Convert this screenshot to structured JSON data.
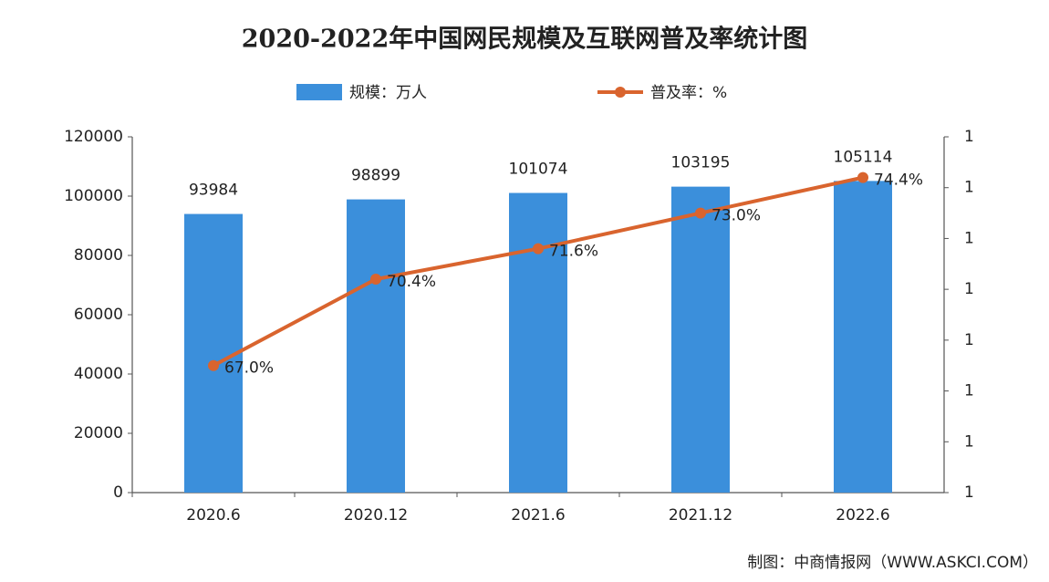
{
  "chart_data": {
    "type": "combo",
    "title": "2020-2022年中国网民规模及互联网普及率统计图",
    "categories": [
      "2020.6",
      "2020.12",
      "2021.6",
      "2021.12",
      "2022.6"
    ],
    "series": [
      {
        "name": "规模：万人",
        "type": "bar",
        "color": "#3b8fdb",
        "values": [
          93984,
          98899,
          101074,
          103195,
          105114
        ]
      },
      {
        "name": "普及率：%",
        "type": "line",
        "axis": "y2",
        "color": "#d9642e",
        "values": [
          67.0,
          70.4,
          71.6,
          73.0,
          74.4
        ],
        "value_labels": [
          "67.0%",
          "70.4%",
          "71.6%",
          "73.0%",
          "74.4%"
        ]
      }
    ],
    "ylim": [
      0,
      120000
    ],
    "yticks": [
      0,
      20000,
      40000,
      60000,
      80000,
      100000,
      120000
    ],
    "y2lim": [
      62,
      76
    ],
    "y2ticks": [
      {
        "value": 62,
        "label": "1"
      },
      {
        "value": 64,
        "label": "1"
      },
      {
        "value": 66,
        "label": "1"
      },
      {
        "value": 68,
        "label": "1"
      },
      {
        "value": 70,
        "label": "1"
      },
      {
        "value": 72,
        "label": "1"
      },
      {
        "value": 74,
        "label": "1"
      },
      {
        "value": 76,
        "label": "1"
      }
    ],
    "source": "制图：中商情报网（WWW.ASKCI.COM）"
  }
}
